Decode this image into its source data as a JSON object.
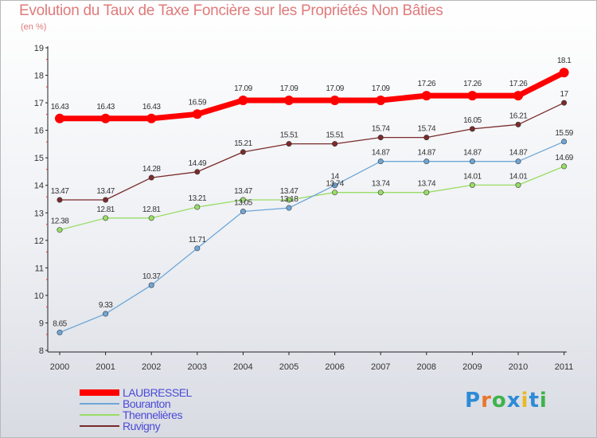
{
  "title": "Evolution du Taux de Taxe Foncière sur les Propriétés Non Bâties",
  "unit": "(en %)",
  "brand": {
    "text": "Proxiti",
    "letter_colors": [
      "#2d8bd6",
      "#e8762b",
      "#3cb44b",
      "#2d8bd6",
      "#e8b923",
      "#2d8bd6",
      "#3cb44b"
    ]
  },
  "chart_data": {
    "type": "line",
    "x": [
      "2000",
      "2001",
      "2002",
      "2003",
      "2004",
      "2005",
      "2006",
      "2007",
      "2008",
      "2009",
      "2010",
      "2011"
    ],
    "ylim": [
      8,
      19
    ],
    "yticks": [
      "8",
      "9",
      "10",
      "11",
      "12",
      "13",
      "14",
      "15",
      "16",
      "17",
      "18",
      "19"
    ],
    "grid": false,
    "legend_placement": "bottom-left",
    "series": [
      {
        "name": "LAUBRESSEL",
        "color": "#ff0000",
        "values": [
          16.43,
          16.43,
          16.43,
          16.59,
          17.09,
          17.09,
          17.09,
          17.09,
          17.26,
          17.26,
          17.26,
          18.1
        ],
        "labels": [
          "16.43",
          "16.43",
          "16.43",
          "16.59",
          "17.09",
          "17.09",
          "17.09",
          "17.09",
          "17.26",
          "17.26",
          "17.26",
          "18.1"
        ]
      },
      {
        "name": "Bouranton",
        "color": "#6ea6d6",
        "values": [
          8.65,
          9.33,
          10.37,
          11.71,
          13.05,
          13.18,
          14,
          14.87,
          14.87,
          14.87,
          14.87,
          15.59
        ],
        "labels": [
          "8.65",
          "9.33",
          "10.37",
          "11.71",
          "13.05",
          "13.18",
          "14",
          "14.87",
          "14.87",
          "14.87",
          "14.87",
          "15.59"
        ]
      },
      {
        "name": "Thennelières",
        "color": "#99dd66",
        "values": [
          12.38,
          12.81,
          12.81,
          13.21,
          13.47,
          13.47,
          13.74,
          13.74,
          13.74,
          14.01,
          14.01,
          14.69
        ],
        "labels": [
          "12.38",
          "12.81",
          "12.81",
          "13.21",
          "13.47",
          "13.47",
          "13.74",
          "13.74",
          "13.74",
          "14.01",
          "14.01",
          "14.69"
        ]
      },
      {
        "name": "Ruvigny",
        "color": "#7a2b2b",
        "values": [
          13.47,
          13.47,
          14.28,
          14.49,
          15.21,
          15.51,
          15.51,
          15.74,
          15.74,
          16.05,
          16.21,
          17
        ],
        "labels": [
          "13.47",
          "13.47",
          "14.28",
          "14.49",
          "15.21",
          "15.51",
          "15.51",
          "15.74",
          "15.74",
          "16.05",
          "16.21",
          "17"
        ]
      }
    ]
  }
}
